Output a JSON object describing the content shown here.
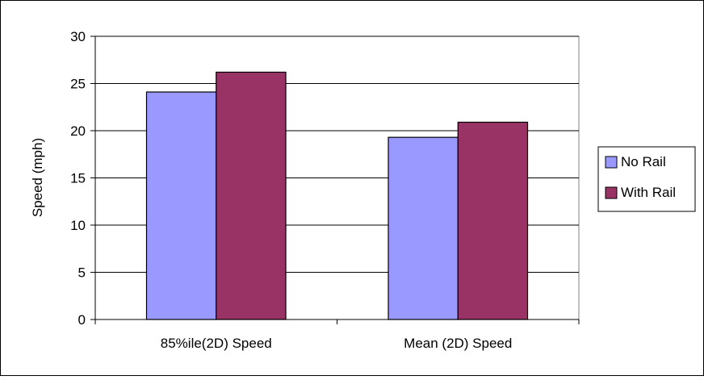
{
  "chart_data": {
    "type": "bar",
    "title": "",
    "xlabel": "",
    "ylabel": "Speed (mph)",
    "ylim": [
      0,
      30
    ],
    "yticks": [
      0,
      5,
      10,
      15,
      20,
      25,
      30
    ],
    "grid": true,
    "legend_position": "right",
    "categories": [
      "85%ile(2D) Speed",
      "Mean (2D) Speed"
    ],
    "series": [
      {
        "name": "No Rail",
        "color": "#9999FF",
        "values": [
          24.1,
          19.3
        ]
      },
      {
        "name": "With Rail",
        "color": "#993366",
        "values": [
          26.2,
          20.9
        ]
      }
    ]
  }
}
